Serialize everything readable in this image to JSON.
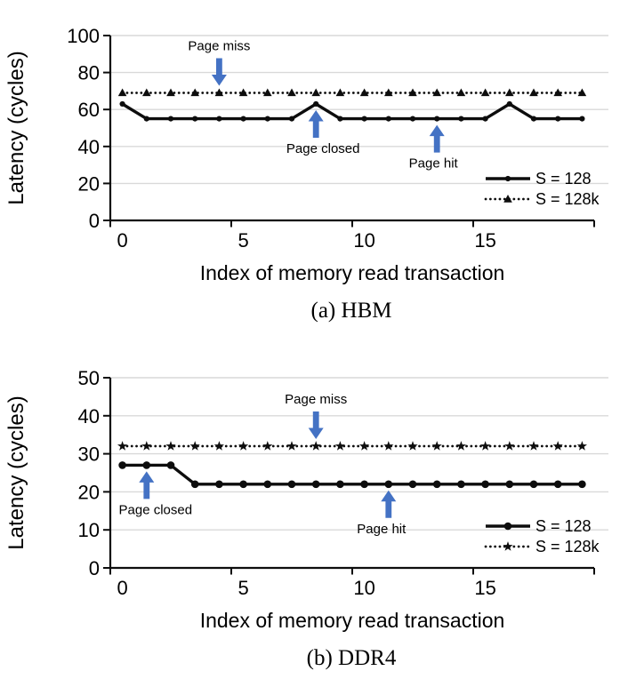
{
  "figure_type": "two stacked line charts comparing memory read latency",
  "colors": {
    "series_line": "#0d0d0d",
    "grid": "#d9d9d9",
    "arrow_blue": "#4472c4",
    "text": "#000000",
    "background": "#ffffff"
  },
  "chart_data": [
    {
      "type": "line",
      "title_caption": "(a) HBM",
      "xlabel": "Index of memory read transaction",
      "ylabel": "Latency (cycles)",
      "ylim": [
        0,
        100
      ],
      "yticks": [
        0,
        20,
        40,
        60,
        80,
        100
      ],
      "xticks": [
        0,
        5,
        10,
        15
      ],
      "grid": "horizontal",
      "legend_position": "right-middle",
      "x": [
        0,
        1,
        2,
        3,
        4,
        5,
        6,
        7,
        8,
        9,
        10,
        11,
        12,
        13,
        14,
        15,
        16,
        17,
        18,
        19
      ],
      "series": [
        {
          "name": "S = 128",
          "line": "solid",
          "marker": "dot",
          "values": [
            63,
            55,
            55,
            55,
            55,
            55,
            55,
            55,
            63,
            55,
            55,
            55,
            55,
            55,
            55,
            55,
            63,
            55,
            55,
            55
          ]
        },
        {
          "name": "S = 128k",
          "line": "dotted",
          "marker": "triangle",
          "values": [
            69,
            69,
            69,
            69,
            69,
            69,
            69,
            69,
            69,
            69,
            69,
            69,
            69,
            69,
            69,
            69,
            69,
            69,
            69,
            69
          ]
        }
      ],
      "annotations": [
        {
          "text": "Page miss",
          "x_index": 4,
          "direction": "down",
          "target_value": 69,
          "dx": 0
        },
        {
          "text": "Page closed",
          "x_index": 8,
          "direction": "up",
          "target_value": 63,
          "dx": 8
        },
        {
          "text": "Page hit",
          "x_index": 13,
          "direction": "up",
          "target_value": 55,
          "dx": -4
        }
      ]
    },
    {
      "type": "line",
      "title_caption": "(b) DDR4",
      "xlabel": "Index of memory read transaction",
      "ylabel": "Latency (cycles)",
      "ylim": [
        0,
        50
      ],
      "yticks": [
        0,
        10,
        20,
        30,
        40,
        50
      ],
      "xticks": [
        0,
        5,
        10,
        15
      ],
      "grid": "horizontal",
      "legend_position": "right-middle",
      "x": [
        0,
        1,
        2,
        3,
        4,
        5,
        6,
        7,
        8,
        9,
        10,
        11,
        12,
        13,
        14,
        15,
        16,
        17,
        18,
        19
      ],
      "series": [
        {
          "name": "S = 128",
          "line": "solid",
          "marker": "circle",
          "values": [
            27,
            27,
            27,
            22,
            22,
            22,
            22,
            22,
            22,
            22,
            22,
            22,
            22,
            22,
            22,
            22,
            22,
            22,
            22,
            22
          ]
        },
        {
          "name": "S = 128k",
          "line": "dotted",
          "marker": "star",
          "values": [
            32,
            32,
            32,
            32,
            32,
            32,
            32,
            32,
            32,
            32,
            32,
            32,
            32,
            32,
            32,
            32,
            32,
            32,
            32,
            32
          ]
        }
      ],
      "annotations": [
        {
          "text": "Page closed",
          "x_index": 1,
          "direction": "up",
          "target_value": 27,
          "dx": 10
        },
        {
          "text": "Page miss",
          "x_index": 8,
          "direction": "down",
          "target_value": 32,
          "dx": 0
        },
        {
          "text": "Page hit",
          "x_index": 11,
          "direction": "up",
          "target_value": 22,
          "dx": -8
        }
      ]
    }
  ]
}
